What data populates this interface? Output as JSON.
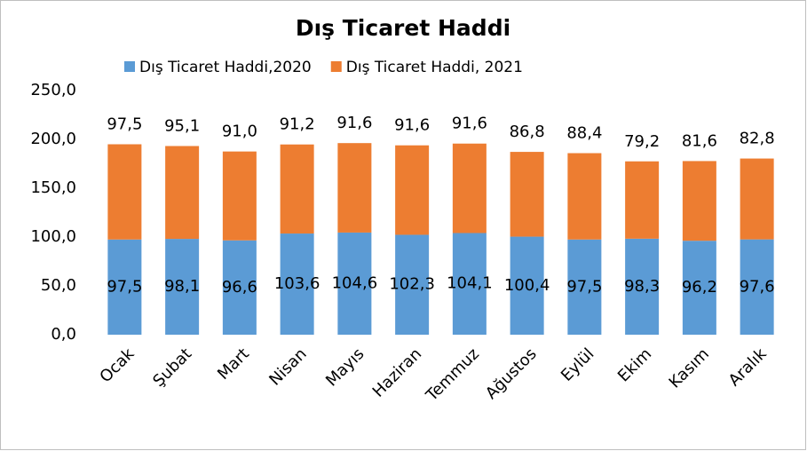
{
  "chart_data": {
    "type": "stacked_bar",
    "title": "Dış Ticaret Haddi",
    "categories": [
      "Ocak",
      "Şubat",
      "Mart",
      "Nisan",
      "Mayıs",
      "Haziran",
      "Temmuz",
      "Ağustos",
      "Eylül",
      "Ekim",
      "Kasım",
      "Aralık"
    ],
    "series": [
      {
        "name": "Dış Ticaret Haddi,2020",
        "color": "#5b9bd5",
        "values": [
          97.5,
          98.1,
          96.6,
          103.6,
          104.6,
          102.3,
          104.1,
          100.4,
          97.5,
          98.3,
          96.2,
          97.6
        ],
        "value_labels": [
          "97,5",
          "98,1",
          "96,6",
          "103,6",
          "104,6",
          "102,3",
          "104,1",
          "100,4",
          "97,5",
          "98,3",
          "96,2",
          "97,6"
        ]
      },
      {
        "name": "Dış Ticaret Haddi, 2021",
        "color": "#ed7d31",
        "values": [
          97.5,
          95.1,
          91.0,
          91.2,
          91.6,
          91.6,
          91.6,
          86.8,
          88.4,
          79.2,
          81.6,
          82.8
        ],
        "value_labels": [
          "97,5",
          "95,1",
          "91,0",
          "91,2",
          "91,6",
          "91,6",
          "91,6",
          "86,8",
          "88,4",
          "79,2",
          "81,6",
          "82,8"
        ]
      }
    ],
    "ylim": [
      0,
      250
    ],
    "yticks": [
      {
        "value": 0,
        "label": "0,0"
      },
      {
        "value": 50,
        "label": "50,0"
      },
      {
        "value": 100,
        "label": "100,0"
      },
      {
        "value": 150,
        "label": "150,0"
      },
      {
        "value": 200,
        "label": "200,0"
      },
      {
        "value": 250,
        "label": "250,0"
      }
    ],
    "legend": "top"
  }
}
